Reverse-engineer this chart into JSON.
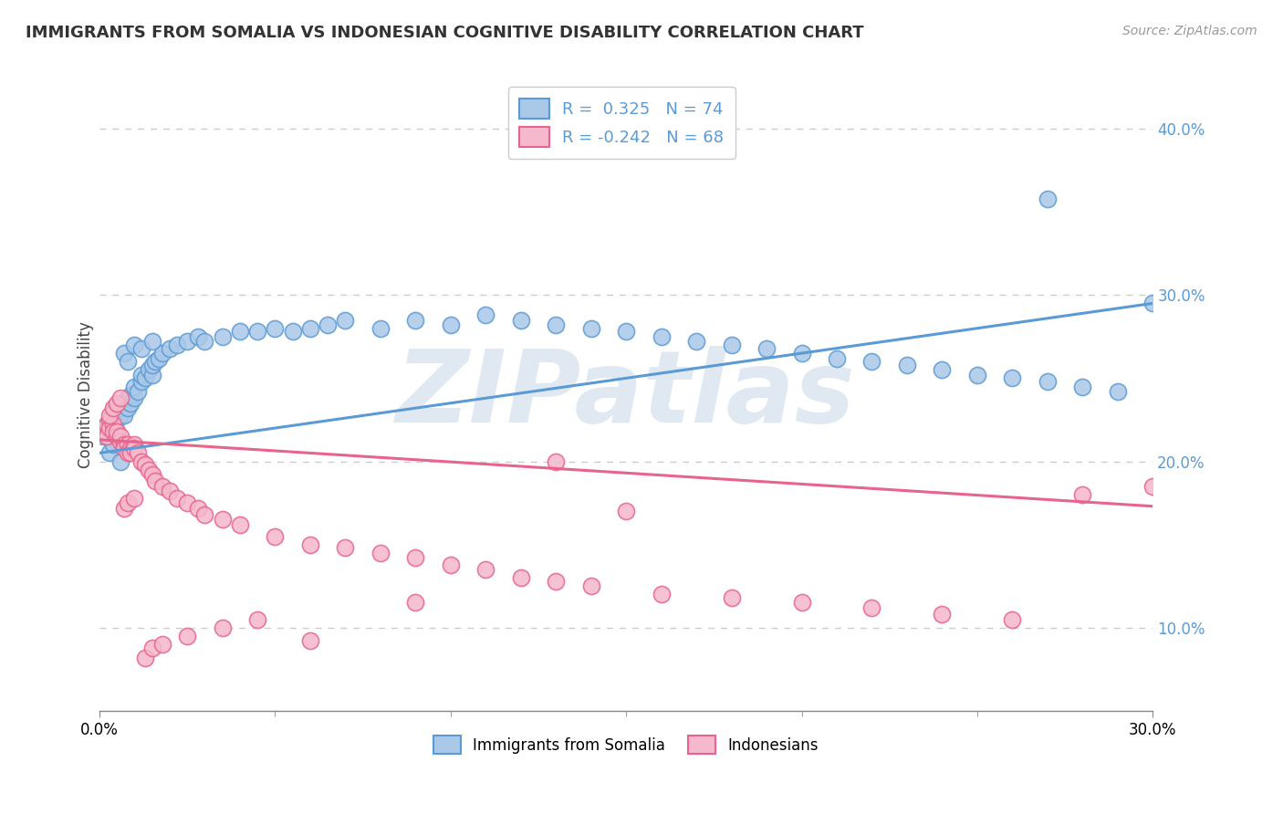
{
  "title": "IMMIGRANTS FROM SOMALIA VS INDONESIAN COGNITIVE DISABILITY CORRELATION CHART",
  "source_text": "Source: ZipAtlas.com",
  "ylabel": "Cognitive Disability",
  "watermark": "ZIPatlas",
  "legend": {
    "somalia": {
      "R": 0.325,
      "N": 74
    },
    "indonesian": {
      "R": -0.242,
      "N": 68
    }
  },
  "x_min": 0.0,
  "x_max": 0.3,
  "y_min": 0.05,
  "y_max": 0.43,
  "yticks": [
    0.1,
    0.2,
    0.3,
    0.4
  ],
  "ytick_labels": [
    "10.0%",
    "20.0%",
    "30.0%",
    "40.0%"
  ],
  "blue_line": {
    "x0": 0.0,
    "y0": 0.205,
    "x1": 0.3,
    "y1": 0.295
  },
  "pink_line": {
    "x0": 0.0,
    "y0": 0.213,
    "x1": 0.3,
    "y1": 0.173
  },
  "grid_color": "#cccccc",
  "blue_color": "#5b9bd5",
  "pink_color": "#e8648c",
  "blue_face": "#aac8e8",
  "pink_face": "#f5b8cc",
  "somalia_x": [
    0.001,
    0.002,
    0.002,
    0.003,
    0.003,
    0.004,
    0.004,
    0.005,
    0.005,
    0.006,
    0.006,
    0.007,
    0.007,
    0.008,
    0.008,
    0.009,
    0.009,
    0.01,
    0.01,
    0.011,
    0.012,
    0.012,
    0.013,
    0.014,
    0.015,
    0.015,
    0.016,
    0.017,
    0.018,
    0.02,
    0.022,
    0.025,
    0.028,
    0.03,
    0.035,
    0.04,
    0.045,
    0.05,
    0.055,
    0.06,
    0.065,
    0.07,
    0.08,
    0.09,
    0.1,
    0.11,
    0.12,
    0.13,
    0.14,
    0.15,
    0.16,
    0.17,
    0.18,
    0.19,
    0.2,
    0.21,
    0.22,
    0.23,
    0.24,
    0.25,
    0.26,
    0.27,
    0.28,
    0.29,
    0.3,
    0.003,
    0.004,
    0.006,
    0.007,
    0.008,
    0.01,
    0.012,
    0.015,
    0.27
  ],
  "somalia_y": [
    0.215,
    0.218,
    0.222,
    0.22,
    0.225,
    0.222,
    0.23,
    0.218,
    0.225,
    0.228,
    0.232,
    0.235,
    0.228,
    0.232,
    0.238,
    0.235,
    0.24,
    0.238,
    0.245,
    0.242,
    0.248,
    0.252,
    0.25,
    0.255,
    0.252,
    0.258,
    0.26,
    0.262,
    0.265,
    0.268,
    0.27,
    0.272,
    0.275,
    0.272,
    0.275,
    0.278,
    0.278,
    0.28,
    0.278,
    0.28,
    0.282,
    0.285,
    0.28,
    0.285,
    0.282,
    0.288,
    0.285,
    0.282,
    0.28,
    0.278,
    0.275,
    0.272,
    0.27,
    0.268,
    0.265,
    0.262,
    0.26,
    0.258,
    0.255,
    0.252,
    0.25,
    0.248,
    0.245,
    0.242,
    0.295,
    0.205,
    0.21,
    0.2,
    0.265,
    0.26,
    0.27,
    0.268,
    0.272,
    0.358
  ],
  "indonesian_x": [
    0.001,
    0.002,
    0.002,
    0.003,
    0.003,
    0.004,
    0.004,
    0.005,
    0.005,
    0.006,
    0.006,
    0.007,
    0.007,
    0.008,
    0.008,
    0.009,
    0.009,
    0.01,
    0.01,
    0.011,
    0.012,
    0.013,
    0.014,
    0.015,
    0.016,
    0.018,
    0.02,
    0.022,
    0.025,
    0.028,
    0.03,
    0.035,
    0.04,
    0.05,
    0.06,
    0.07,
    0.08,
    0.09,
    0.1,
    0.11,
    0.12,
    0.13,
    0.14,
    0.15,
    0.16,
    0.18,
    0.2,
    0.22,
    0.24,
    0.26,
    0.28,
    0.3,
    0.003,
    0.004,
    0.005,
    0.006,
    0.007,
    0.008,
    0.01,
    0.013,
    0.015,
    0.018,
    0.025,
    0.035,
    0.045,
    0.06,
    0.09,
    0.13
  ],
  "indonesian_y": [
    0.218,
    0.222,
    0.215,
    0.225,
    0.22,
    0.222,
    0.218,
    0.215,
    0.218,
    0.212,
    0.215,
    0.21,
    0.208,
    0.21,
    0.205,
    0.208,
    0.205,
    0.21,
    0.208,
    0.205,
    0.2,
    0.198,
    0.195,
    0.192,
    0.188,
    0.185,
    0.182,
    0.178,
    0.175,
    0.172,
    0.168,
    0.165,
    0.162,
    0.155,
    0.15,
    0.148,
    0.145,
    0.142,
    0.138,
    0.135,
    0.13,
    0.128,
    0.125,
    0.17,
    0.12,
    0.118,
    0.115,
    0.112,
    0.108,
    0.105,
    0.18,
    0.185,
    0.228,
    0.232,
    0.235,
    0.238,
    0.172,
    0.175,
    0.178,
    0.082,
    0.088,
    0.09,
    0.095,
    0.1,
    0.105,
    0.092,
    0.115,
    0.2
  ]
}
